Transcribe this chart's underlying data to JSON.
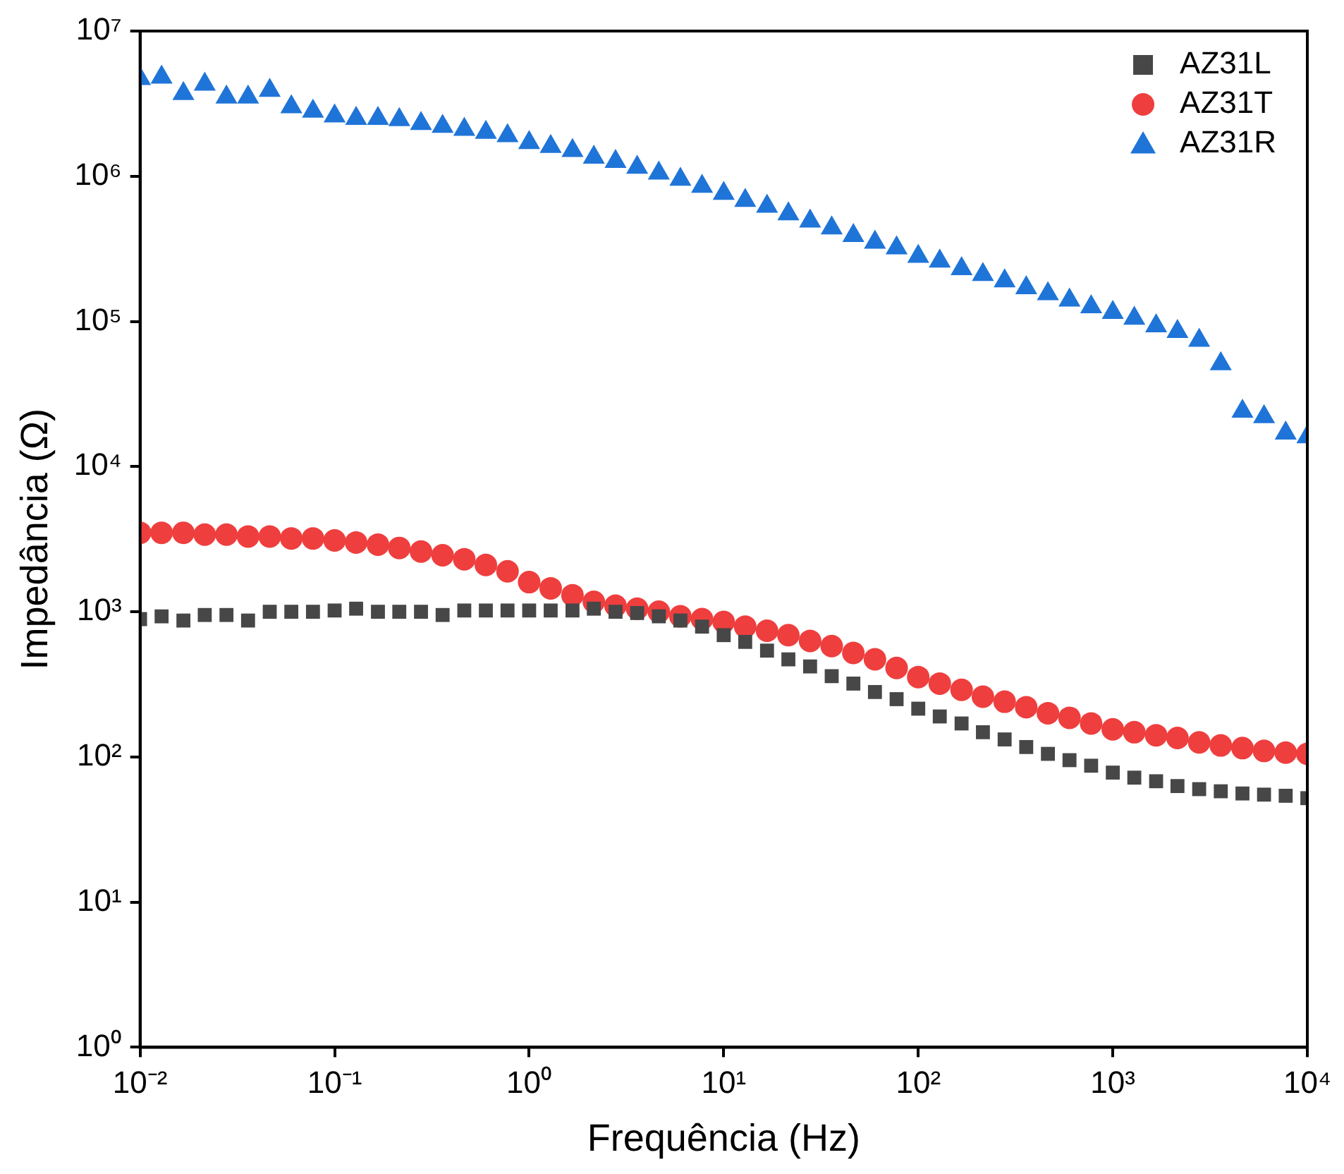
{
  "chart_data": {
    "type": "scatter",
    "xlabel": "Frequência (Hz)",
    "ylabel": "Impedância (Ω)",
    "log": "xy",
    "grid": false,
    "legend": "top right",
    "xlim": [
      0.01,
      10000
    ],
    "ylim": [
      1,
      10000000
    ],
    "xticks": [
      {
        "value": 0.01,
        "label": "10⁻²"
      },
      {
        "value": 0.1,
        "label": "10⁻¹"
      },
      {
        "value": 1,
        "label": "10⁰"
      },
      {
        "value": 10,
        "label": "10¹"
      },
      {
        "value": 100,
        "label": "10²"
      },
      {
        "value": 1000,
        "label": "10³"
      },
      {
        "value": 10000,
        "label": "10⁴"
      }
    ],
    "yticks": [
      {
        "value": 1,
        "label": "10⁰"
      },
      {
        "value": 10,
        "label": "10¹"
      },
      {
        "value": 100,
        "label": "10²"
      },
      {
        "value": 1000,
        "label": "10³"
      },
      {
        "value": 10000,
        "label": "10⁴"
      },
      {
        "value": 100000,
        "label": "10⁵"
      },
      {
        "value": 1000000,
        "label": "10⁶"
      },
      {
        "value": 10000000,
        "label": "10⁷"
      }
    ],
    "x": [
      0.01,
      0.0129,
      0.0167,
      0.0215,
      0.0278,
      0.0359,
      0.0464,
      0.0599,
      0.0774,
      0.1,
      0.129,
      0.167,
      0.215,
      0.278,
      0.359,
      0.464,
      0.599,
      0.774,
      1,
      1.29,
      1.67,
      2.15,
      2.78,
      3.59,
      4.64,
      5.99,
      7.74,
      10,
      12.9,
      16.7,
      21.5,
      27.8,
      35.9,
      46.4,
      59.9,
      77.4,
      100,
      129,
      167,
      215,
      278,
      359,
      464,
      599,
      774,
      1000,
      1290,
      1670,
      2150,
      2780,
      3590,
      4640,
      5990,
      7740,
      10000
    ],
    "series": [
      {
        "name": "AZ31L",
        "color": "#474747",
        "marker": "square",
        "values": [
          890,
          930,
          870,
          950,
          950,
          870,
          1000,
          1000,
          1000,
          1020,
          1050,
          1000,
          1000,
          1000,
          950,
          1020,
          1020,
          1020,
          1020,
          1020,
          1020,
          1050,
          1000,
          980,
          930,
          870,
          790,
          690,
          620,
          540,
          470,
          420,
          360,
          320,
          280,
          250,
          215,
          190,
          170,
          148,
          132,
          117,
          105,
          95,
          87,
          78,
          72,
          68,
          63,
          60,
          58,
          56,
          55,
          54,
          52
        ]
      },
      {
        "name": "AZ31T",
        "color": "#ef3e3e",
        "marker": "circle",
        "values": [
          3500,
          3500,
          3500,
          3400,
          3400,
          3300,
          3300,
          3200,
          3200,
          3100,
          3000,
          2900,
          2750,
          2600,
          2450,
          2300,
          2100,
          1900,
          1600,
          1450,
          1300,
          1170,
          1100,
          1050,
          1000,
          930,
          890,
          850,
          790,
          740,
          690,
          630,
          580,
          520,
          470,
          410,
          355,
          320,
          290,
          260,
          240,
          220,
          200,
          186,
          170,
          155,
          148,
          141,
          135,
          126,
          120,
          115,
          110,
          107,
          105
        ]
      },
      {
        "name": "AZ31R",
        "color": "#1f74d8",
        "marker": "triangle",
        "values": [
          4700000,
          4800000,
          3700000,
          4300000,
          3500000,
          3500000,
          3900000,
          3000000,
          2800000,
          2600000,
          2500000,
          2500000,
          2450000,
          2300000,
          2200000,
          2100000,
          2000000,
          1900000,
          1700000,
          1600000,
          1500000,
          1350000,
          1260000,
          1150000,
          1050000,
          950000,
          850000,
          760000,
          680000,
          620000,
          550000,
          490000,
          440000,
          390000,
          350000,
          320000,
          280000,
          260000,
          230000,
          210000,
          190000,
          170000,
          155000,
          140000,
          126000,
          115000,
          105000,
          93000,
          85000,
          74000,
          51000,
          24000,
          22000,
          17000,
          16000
        ]
      }
    ]
  }
}
